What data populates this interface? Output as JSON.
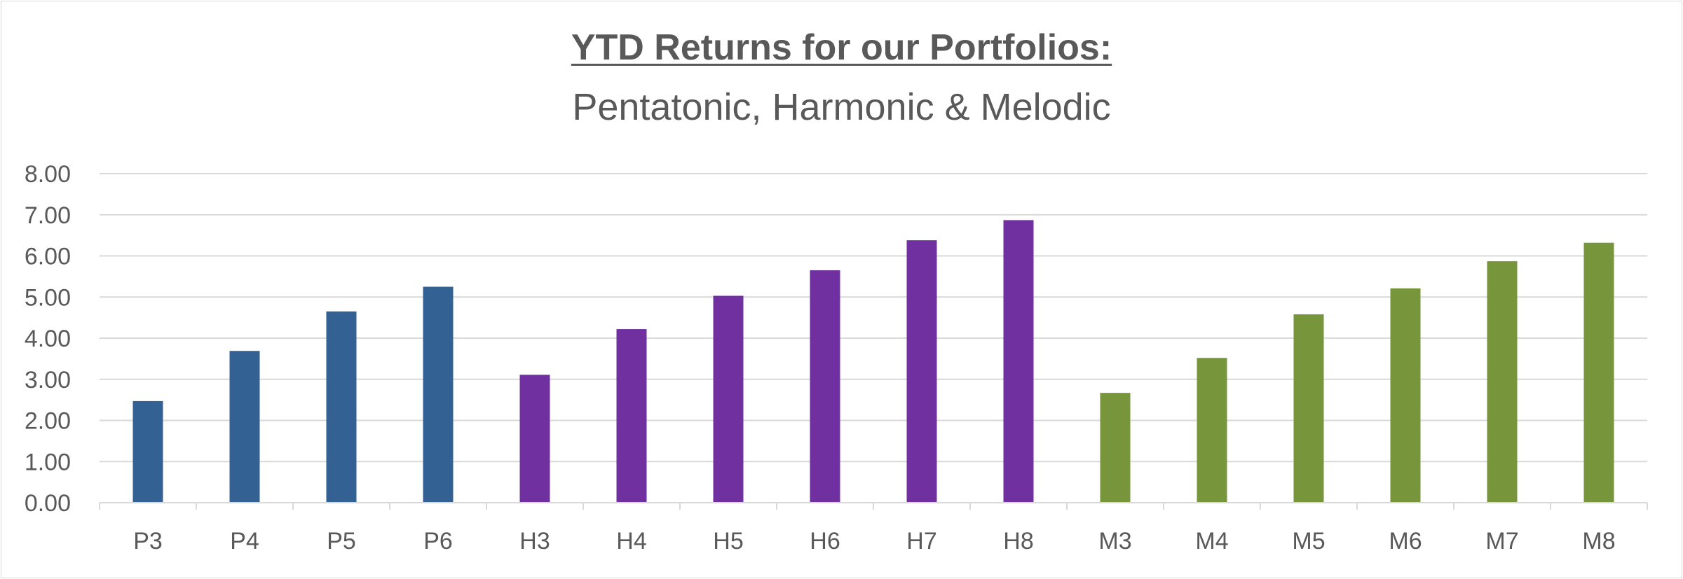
{
  "chart_data": {
    "type": "bar",
    "title": "YTD Returns for our Portfolios:",
    "subtitle": "Pentatonic, Harmonic & Melodic",
    "xlabel": "",
    "ylabel": "",
    "categories": [
      "P3",
      "P4",
      "P5",
      "P6",
      "H3",
      "H4",
      "H5",
      "H6",
      "H7",
      "H8",
      "M3",
      "M4",
      "M5",
      "M6",
      "M7",
      "M8"
    ],
    "values": [
      2.47,
      3.69,
      4.65,
      5.25,
      3.11,
      4.22,
      5.03,
      5.65,
      6.38,
      6.87,
      2.67,
      3.52,
      4.58,
      5.21,
      5.87,
      6.32
    ],
    "bar_colors": [
      "#346193",
      "#346193",
      "#346193",
      "#346193",
      "#7030a0",
      "#7030a0",
      "#7030a0",
      "#7030a0",
      "#7030a0",
      "#7030a0",
      "#77963c",
      "#77963c",
      "#77963c",
      "#77963c",
      "#77963c",
      "#77963c"
    ],
    "ylim": [
      0,
      8
    ],
    "yticks": [
      "0.00",
      "1.00",
      "2.00",
      "3.00",
      "4.00",
      "5.00",
      "6.00",
      "7.00",
      "8.00"
    ],
    "grid": true,
    "legend": "none"
  }
}
